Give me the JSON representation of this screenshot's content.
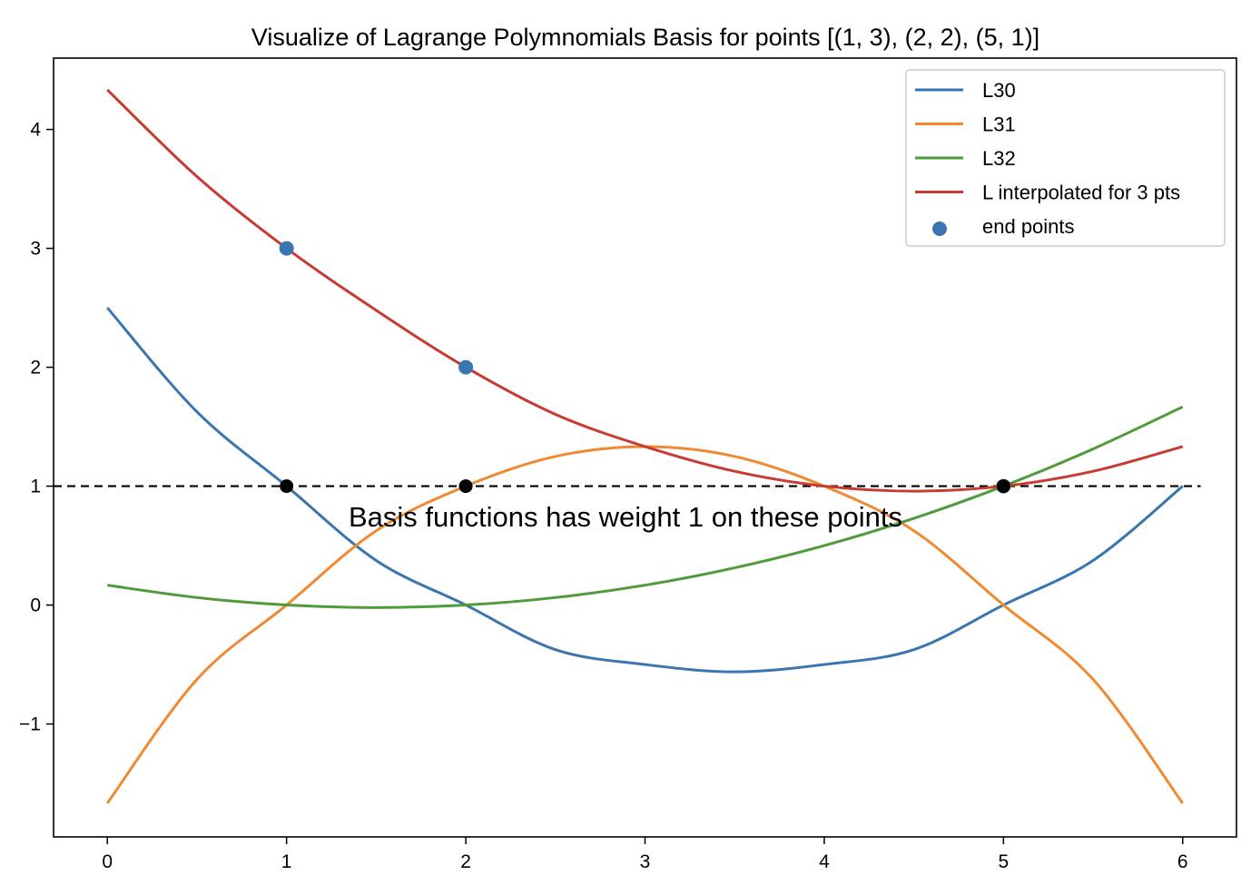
{
  "chart_data": {
    "type": "line",
    "title": "Visualize of Lagrange Polymnomials Basis for points [(1, 3), (2, 2), (5, 1)]",
    "xlabel": "",
    "ylabel": "",
    "xlim": [
      -0.3,
      6.3
    ],
    "ylim": [
      -1.95,
      4.6
    ],
    "x_ticks": [
      0,
      1,
      2,
      3,
      4,
      5,
      6
    ],
    "x_tick_labels": [
      "0",
      "1",
      "2",
      "3",
      "4",
      "5",
      "6"
    ],
    "y_ticks": [
      -1,
      0,
      1,
      2,
      3,
      4
    ],
    "y_tick_labels": [
      "−1",
      "0",
      "1",
      "2",
      "3",
      "4"
    ],
    "grid": false,
    "legend_position": "top-right",
    "x": [
      0,
      0.5,
      1,
      1.5,
      2,
      2.5,
      3,
      3.5,
      4,
      4.5,
      5,
      5.5,
      6
    ],
    "series": [
      {
        "name": "L30",
        "color": "#3a75b0",
        "values": [
          2.5,
          1.625,
          1.0,
          0.375,
          0.0,
          -0.375,
          -0.5,
          -0.562,
          -0.5,
          -0.375,
          0.0,
          0.375,
          1.0
        ]
      },
      {
        "name": "L31",
        "color": "#ef8a32",
        "values": [
          -1.667,
          -0.625,
          0.0,
          0.625,
          1.0,
          1.25,
          1.333,
          1.25,
          1.0,
          0.625,
          0.0,
          -0.625,
          -1.667
        ]
      },
      {
        "name": "L32",
        "color": "#4f9a3a",
        "values": [
          0.167,
          0.063,
          0.0,
          -0.021,
          0.0,
          0.063,
          0.167,
          0.313,
          0.5,
          0.729,
          1.0,
          1.313,
          1.667
        ]
      },
      {
        "name": "L interpolated for 3 pts",
        "color": "#c83a32",
        "values": [
          4.333,
          3.604,
          3.0,
          2.479,
          2.0,
          1.604,
          1.333,
          1.125,
          1.0,
          0.958,
          1.0,
          1.125,
          1.333
        ]
      }
    ],
    "scatter": {
      "name": "end points",
      "color": "#3a75b0",
      "points": [
        [
          1,
          3
        ],
        [
          2,
          2
        ],
        [
          5,
          1
        ]
      ]
    },
    "marker_points": {
      "color": "#000000",
      "points": [
        [
          1,
          1
        ],
        [
          2,
          1
        ],
        [
          5,
          1
        ]
      ]
    },
    "reference_line": {
      "y": 1,
      "style": "dashed",
      "color": "#000000"
    },
    "annotation": {
      "text": "Basis functions has weight 1 on these points",
      "x": 3.9,
      "y": 0.75
    }
  }
}
